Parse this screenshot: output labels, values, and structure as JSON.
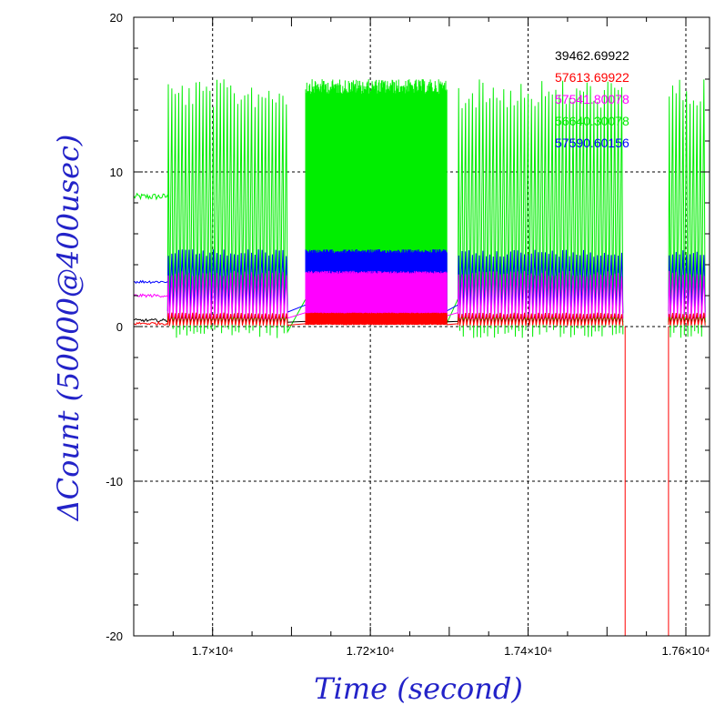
{
  "chart_data": {
    "type": "line",
    "xlabel": "Time (second)",
    "ylabel": "ΔCount (50000@400usec)",
    "xlim": [
      16900,
      17630
    ],
    "ylim": [
      -20,
      20
    ],
    "grid": true,
    "legend_position": "top-right",
    "axis_color": "#2323c8",
    "x_ticks": [
      {
        "value": 17000,
        "label": "1.7×10⁴"
      },
      {
        "value": 17200,
        "label": "1.72×10⁴"
      },
      {
        "value": 17400,
        "label": "1.74×10⁴"
      },
      {
        "value": 17600,
        "label": "1.76×10⁴"
      }
    ],
    "y_ticks": [
      {
        "value": 20,
        "label": "20"
      },
      {
        "value": 10,
        "label": "10"
      },
      {
        "value": 0,
        "label": "0"
      },
      {
        "value": -10,
        "label": "-10"
      },
      {
        "value": -20,
        "label": "-20"
      }
    ],
    "segments": [
      {
        "from": 16900,
        "to": 16943,
        "style": "flat"
      },
      {
        "from": 16943,
        "to": 17097,
        "style": "oscillating"
      },
      {
        "from": 17097,
        "to": 17118,
        "style": "gap"
      },
      {
        "from": 17118,
        "to": 17297,
        "style": "dense"
      },
      {
        "from": 17297,
        "to": 17311,
        "style": "gap"
      },
      {
        "from": 17311,
        "to": 17523,
        "style": "oscillating"
      },
      {
        "from": 17523,
        "to": 17578,
        "style": "gap"
      },
      {
        "from": 17578,
        "to": 17630,
        "style": "oscillating"
      }
    ],
    "series": [
      {
        "name": "39462.69922",
        "color": "#000000",
        "flat": 0.4,
        "base": 0.3,
        "peak": 0.7
      },
      {
        "name": "57613.69922",
        "color": "#ff0000",
        "flat": 0.2,
        "base": 0.1,
        "peak": 0.9,
        "dips": [
          {
            "x": 17523,
            "to": -20
          },
          {
            "x": 17578,
            "to": -20
          }
        ]
      },
      {
        "name": "57541.80078",
        "color": "#ff00ff",
        "flat": 2.0,
        "base": 0.6,
        "peak": 3.6
      },
      {
        "name": "56640.30078",
        "color": "#00ee00",
        "flat": 8.4,
        "base": 0.2,
        "peak": 16.0
      },
      {
        "name": "57590.60156",
        "color": "#0000ff",
        "flat": 2.9,
        "base": 1.0,
        "peak": 5.0
      }
    ]
  }
}
